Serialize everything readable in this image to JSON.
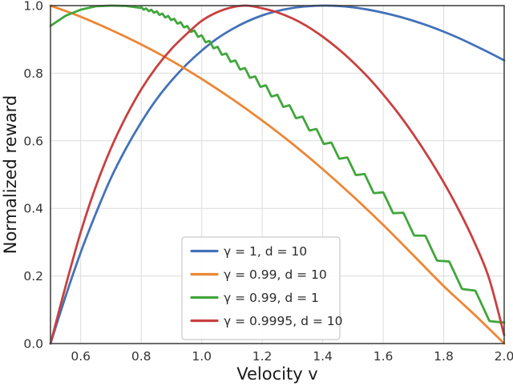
{
  "chart_data": {
    "type": "line",
    "title": "",
    "xlabel": "Velocity v",
    "ylabel": "Normalized reward",
    "xlim": [
      0.5,
      2.0
    ],
    "ylim": [
      0.0,
      1.0
    ],
    "grid": true,
    "background": "#ffffff",
    "grid_color": "#dcdcdc",
    "spine_color": "#3a3a3a",
    "tick_color": "#333333",
    "label_color": "#1a1a1a",
    "xticks": [
      0.6,
      0.8,
      1.0,
      1.2,
      1.4,
      1.6,
      1.8,
      2.0
    ],
    "xtick_labels": [
      "0.6",
      "0.8",
      "1.0",
      "1.2",
      "1.4",
      "1.6",
      "1.8",
      "2.0"
    ],
    "yticks": [
      0.0,
      0.2,
      0.4,
      0.6,
      0.8,
      1.0
    ],
    "ytick_labels": [
      "0.0",
      "0.2",
      "0.4",
      "0.6",
      "0.8",
      "1.0"
    ],
    "legend": {
      "position": "lower center",
      "frame": true,
      "border_color": "#c9c9c9",
      "background": "#ffffff",
      "text_color": "#2b2b2b"
    },
    "series": [
      {
        "name": "γ = 1, d = 10",
        "color": "#4472B8",
        "x": [
          0.5,
          0.55,
          0.6,
          0.65,
          0.7,
          0.75,
          0.8,
          0.85,
          0.9,
          0.95,
          1.0,
          1.05,
          1.1,
          1.15,
          1.2,
          1.25,
          1.3,
          1.35,
          1.4,
          1.45,
          1.5,
          1.55,
          1.6,
          1.65,
          1.7,
          1.75,
          1.8,
          1.85,
          1.9,
          1.95,
          2.0
        ],
        "y": [
          0.0,
          0.14,
          0.27,
          0.385,
          0.49,
          0.578,
          0.655,
          0.722,
          0.778,
          0.826,
          0.867,
          0.902,
          0.93,
          0.953,
          0.971,
          0.984,
          0.993,
          0.998,
          1.0,
          0.999,
          0.995,
          0.988,
          0.979,
          0.968,
          0.955,
          0.94,
          0.923,
          0.904,
          0.883,
          0.861,
          0.838
        ]
      },
      {
        "name": "γ = 0.99, d = 10",
        "color": "#ED8633",
        "x": [
          0.5,
          0.6,
          0.7,
          0.8,
          0.9,
          1.0,
          1.1,
          1.2,
          1.3,
          1.4,
          1.5,
          1.6,
          1.7,
          1.8,
          1.9,
          2.0
        ],
        "y": [
          1.0,
          0.967,
          0.928,
          0.885,
          0.837,
          0.783,
          0.724,
          0.66,
          0.591,
          0.516,
          0.436,
          0.351,
          0.261,
          0.17,
          0.087,
          0.0
        ]
      },
      {
        "name": "γ = 0.99, d = 1",
        "color": "#41A63C",
        "x": [
          0.5,
          0.55,
          0.6,
          0.65,
          0.7,
          0.75,
          0.8,
          0.85,
          0.9,
          0.95,
          1.0,
          1.05,
          1.1,
          1.15,
          1.2,
          1.25,
          1.3,
          1.35,
          1.4,
          1.45,
          1.5,
          1.55,
          1.6,
          1.65,
          1.7,
          1.75,
          1.8,
          1.85,
          1.9,
          1.95,
          2.0
        ],
        "y": [
          0.94,
          0.97,
          0.988,
          0.998,
          1.0,
          0.999,
          0.993,
          0.98,
          0.961,
          0.936,
          0.906,
          0.873,
          0.838,
          0.802,
          0.764,
          0.726,
          0.687,
          0.647,
          0.606,
          0.564,
          0.521,
          0.477,
          0.432,
          0.386,
          0.339,
          0.291,
          0.242,
          0.192,
          0.141,
          0.089,
          0.04
        ],
        "wiggle": {
          "start_v": 0.8,
          "amp_start": 0.003,
          "amp_end": 0.022,
          "teeth_scale": 40
        }
      },
      {
        "name": "γ = 0.9995, d = 10",
        "color": "#C94040",
        "x": [
          0.5,
          0.55,
          0.6,
          0.65,
          0.7,
          0.75,
          0.8,
          0.85,
          0.9,
          0.95,
          1.0,
          1.05,
          1.1,
          1.15,
          1.2,
          1.25,
          1.3,
          1.35,
          1.4,
          1.45,
          1.5,
          1.55,
          1.6,
          1.65,
          1.7,
          1.75,
          1.8,
          1.85,
          1.9,
          1.95,
          2.0
        ],
        "y": [
          0.0,
          0.17,
          0.33,
          0.465,
          0.578,
          0.672,
          0.752,
          0.818,
          0.872,
          0.916,
          0.955,
          0.98,
          0.995,
          1.0,
          0.992,
          0.98,
          0.962,
          0.938,
          0.908,
          0.873,
          0.833,
          0.788,
          0.737,
          0.681,
          0.619,
          0.551,
          0.477,
          0.395,
          0.303,
          0.193,
          0.025
        ]
      }
    ]
  }
}
